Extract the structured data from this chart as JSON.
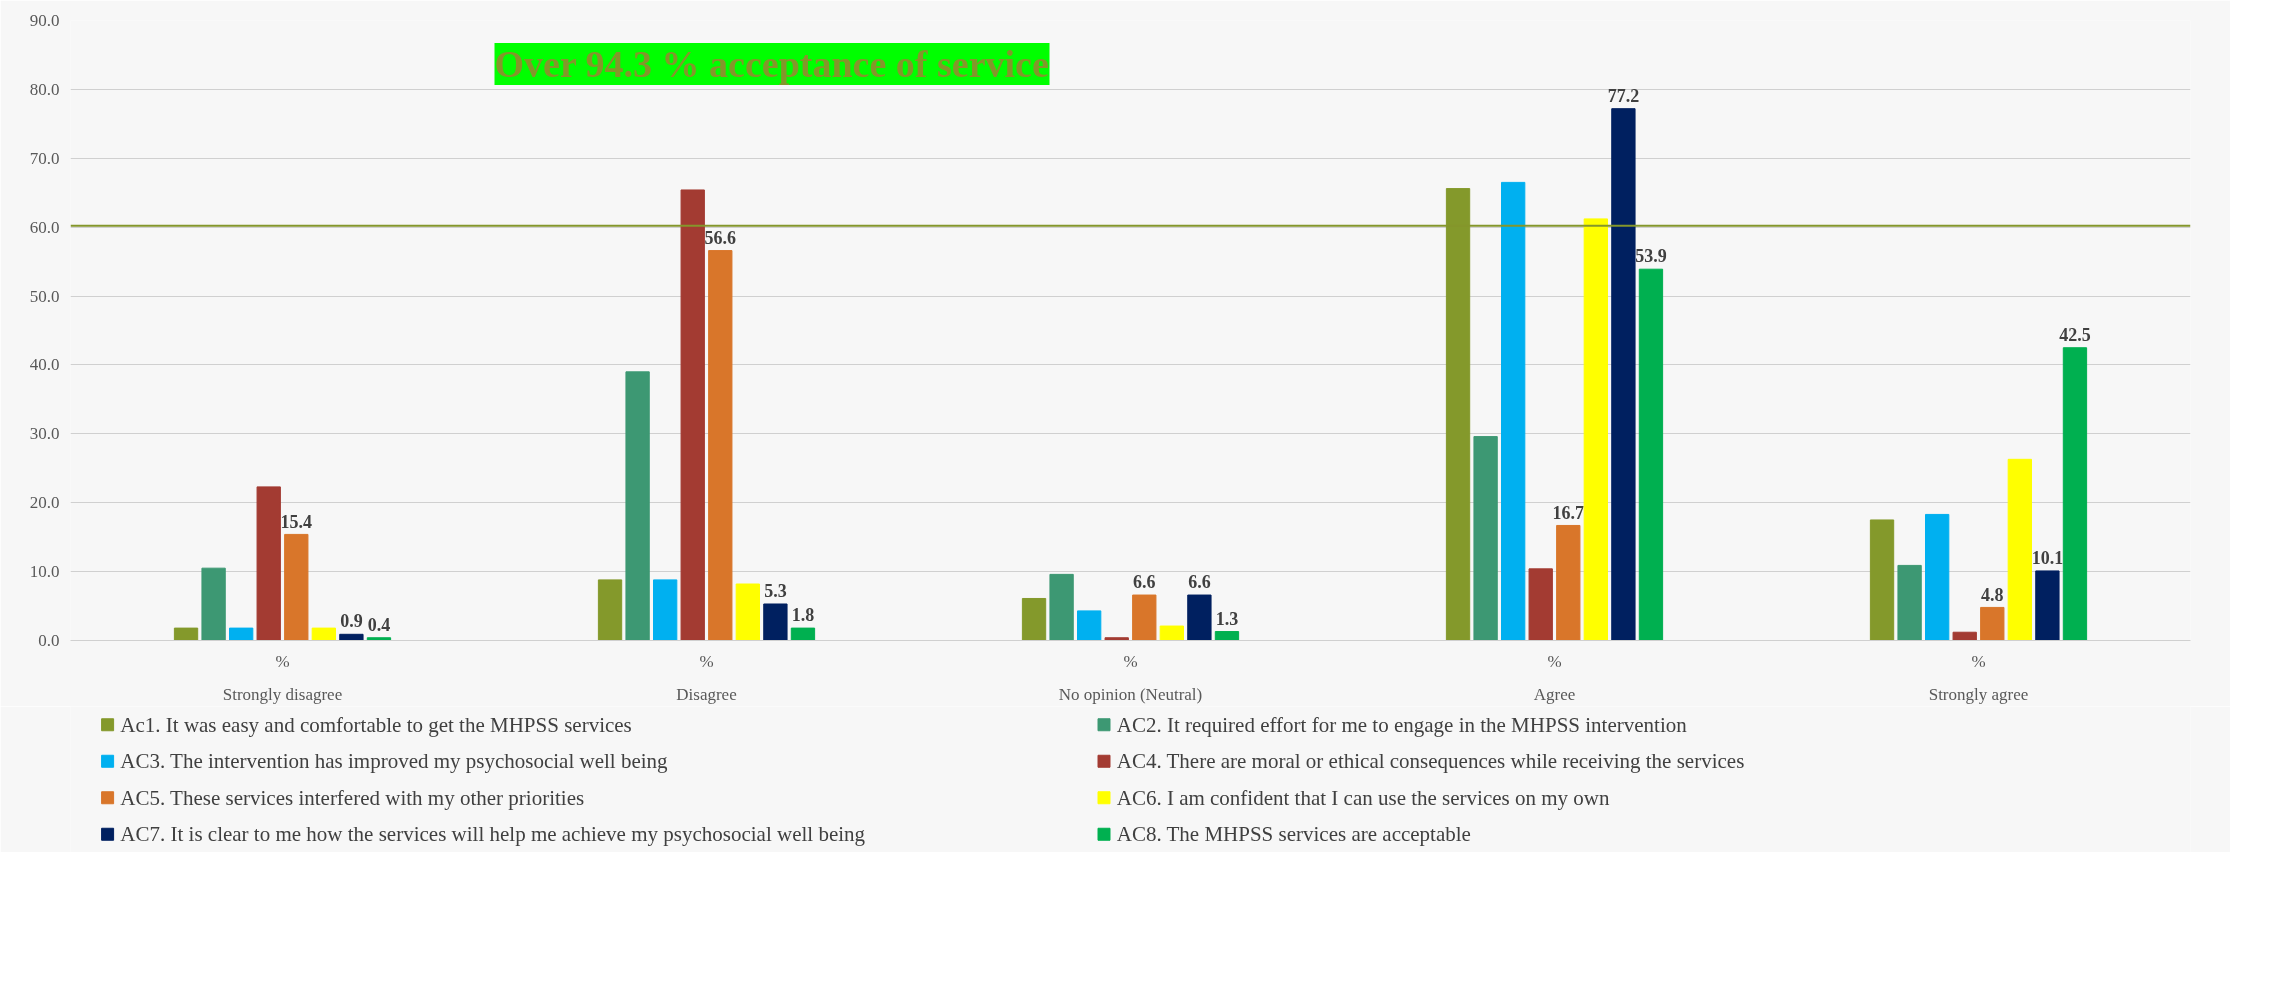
{
  "chart_data": {
    "type": "bar",
    "categories": [
      "Strongly disagree",
      "Disagree",
      "No opinion (Neutral)",
      "Agree",
      "Strongly agree"
    ],
    "series": [
      {
        "name": "Ac1. It was easy and comfortable to get the MHPSS services",
        "color": "#84992b",
        "values": [
          1.8,
          8.8,
          6.1,
          65.6,
          17.5
        ]
      },
      {
        "name": "AC2. It required effort for me to engage in the MHPSS intervention",
        "color": "#3d9873",
        "values": [
          10.5,
          39.0,
          9.6,
          29.6,
          10.9
        ]
      },
      {
        "name": "AC3. The intervention has improved my psychosocial well being",
        "color": "#00b0f0",
        "values": [
          1.8,
          8.8,
          4.3,
          66.5,
          18.3
        ]
      },
      {
        "name": "AC4. There are moral or ethical consequences while receiving the services",
        "color": "#a33b32",
        "values": [
          22.3,
          65.4,
          0.4,
          10.4,
          1.2
        ]
      },
      {
        "name": "AC5. These services interfered with my other priorities",
        "color": "#d9762a",
        "values": [
          15.4,
          56.6,
          6.6,
          16.7,
          4.8
        ],
        "value_labels": [
          "15.4",
          "56.6",
          "6.6",
          "16.7",
          "4.8"
        ]
      },
      {
        "name": "AC6. I am confident that I can use the services on my own",
        "color": "#ffff00",
        "values": [
          1.8,
          8.2,
          2.1,
          61.2,
          26.3
        ]
      },
      {
        "name": "AC7. It is clear to me how the services will help me achieve my psychosocial well being",
        "color": "#002060",
        "values": [
          0.9,
          5.3,
          6.6,
          77.2,
          10.1
        ],
        "value_labels": [
          "0.9",
          "5.3",
          "6.6",
          "77.2",
          "10.1"
        ]
      },
      {
        "name": "AC8. The MHPSS services are acceptable",
        "color": "#00b050",
        "values": [
          0.4,
          1.8,
          1.3,
          53.9,
          42.5
        ],
        "value_labels": [
          "0.4",
          "1.8",
          "1.3",
          "53.9",
          "42.5"
        ]
      }
    ],
    "ylim": [
      0,
      90
    ],
    "yticks": [
      {
        "value": 0,
        "label": "0.0"
      },
      {
        "value": 10,
        "label": "10.0"
      },
      {
        "value": 20,
        "label": "20.0"
      },
      {
        "value": 30,
        "label": "30.0"
      },
      {
        "value": 40,
        "label": "40.0"
      },
      {
        "value": 50,
        "label": "50.0"
      },
      {
        "value": 60,
        "label": "60.0"
      },
      {
        "value": 70,
        "label": "70.0"
      },
      {
        "value": 80,
        "label": "80.0"
      },
      {
        "value": 90,
        "label": "90.0"
      }
    ],
    "ref_lines": [
      {
        "axis": "y",
        "value": 60.2,
        "label": null,
        "color": "#84962b"
      }
    ],
    "annotations": [
      "Over 94.3 % acceptance of service",
      "%",
      "%",
      "%",
      "%",
      "%"
    ],
    "grid": "y",
    "legend": "bottom"
  }
}
